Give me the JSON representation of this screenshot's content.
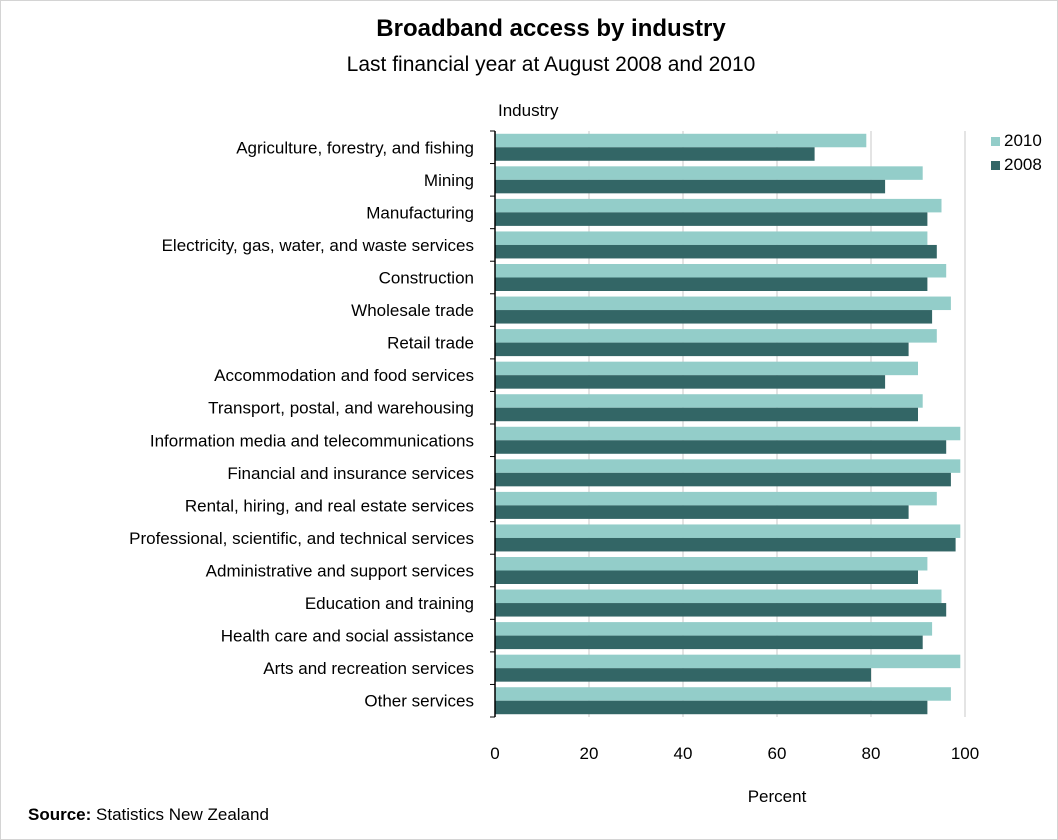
{
  "chart_data": {
    "type": "bar",
    "orientation": "horizontal",
    "title": "Broadband access by industry",
    "subtitle": "Last financial year at August 2008  and 2010",
    "ylabel": "Industry",
    "xlabel": "Percent",
    "xlim": [
      0,
      100
    ],
    "xticks": [
      "0",
      "20",
      "40",
      "60",
      "80",
      "100"
    ],
    "grid": "vertical gridlines",
    "legend_position": "right",
    "categories": [
      "Agriculture, forestry, and fishing",
      "Mining",
      "Manufacturing",
      "Electricity, gas, water, and waste services",
      "Construction",
      "Wholesale trade",
      "Retail trade",
      "Accommodation and food services",
      "Transport, postal, and warehousing",
      "Information media and telecommunications",
      "Financial and insurance services",
      "Rental, hiring, and real estate services",
      "Professional, scientific, and technical services",
      "Administrative and support services",
      "Education and training",
      "Health care and social assistance",
      "Arts and recreation services",
      "Other services"
    ],
    "series": [
      {
        "name": "2010",
        "color": "#93cdc9",
        "values": [
          79,
          91,
          95,
          92,
          96,
          97,
          94,
          90,
          91,
          99,
          99,
          94,
          99,
          92,
          95,
          93,
          99,
          97
        ]
      },
      {
        "name": "2008",
        "color": "#336666",
        "values": [
          68,
          83,
          92,
          94,
          92,
          93,
          88,
          83,
          90,
          96,
          97,
          88,
          98,
          90,
          96,
          91,
          80,
          92
        ]
      }
    ],
    "source_prefix": "Source:",
    "source_text": " Statistics New Zealand"
  }
}
